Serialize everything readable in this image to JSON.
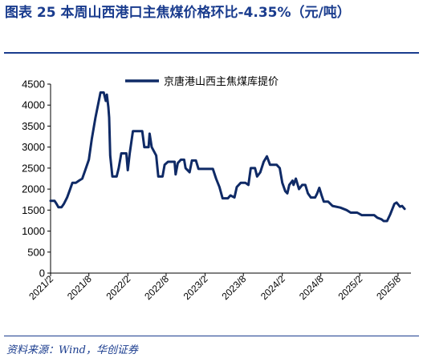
{
  "header": {
    "title": "图表 25  本周山西港口主焦煤价格环比-4.35%（元/吨）"
  },
  "footer": {
    "source": "资料来源：Wind，华创证券"
  },
  "colors": {
    "accent": "#1a3c8e",
    "series": "#0f2a66"
  },
  "chart_data": {
    "type": "line",
    "title": "",
    "xlabel": "",
    "ylabel": "",
    "ylim": [
      0,
      4500
    ],
    "yticks": [
      0,
      500,
      1000,
      1500,
      2000,
      2500,
      3000,
      3500,
      4000,
      4500
    ],
    "xlim": [
      "2021-02",
      "2025-10"
    ],
    "xticks": [
      "2021/2",
      "2021/8",
      "2022/2",
      "2022/8",
      "2023/2",
      "2023/8",
      "2024/2",
      "2024/8",
      "2025/2",
      "2025/8"
    ],
    "legend": "top-center",
    "grid": false,
    "series": [
      {
        "name": "京唐港山西主焦煤库提价",
        "points": [
          [
            "2021-02-01",
            1720
          ],
          [
            "2021-02-20",
            1720
          ],
          [
            "2021-03-01",
            1650
          ],
          [
            "2021-03-10",
            1570
          ],
          [
            "2021-03-25",
            1570
          ],
          [
            "2021-04-05",
            1650
          ],
          [
            "2021-04-20",
            1800
          ],
          [
            "2021-05-01",
            1950
          ],
          [
            "2021-05-15",
            2150
          ],
          [
            "2021-06-01",
            2150
          ],
          [
            "2021-06-15",
            2200
          ],
          [
            "2021-07-01",
            2250
          ],
          [
            "2021-07-15",
            2450
          ],
          [
            "2021-08-01",
            2700
          ],
          [
            "2021-08-15",
            3200
          ],
          [
            "2021-09-01",
            3700
          ],
          [
            "2021-09-15",
            4050
          ],
          [
            "2021-09-25",
            4300
          ],
          [
            "2021-10-10",
            4300
          ],
          [
            "2021-10-20",
            4100
          ],
          [
            "2021-10-25",
            4250
          ],
          [
            "2021-11-01",
            3950
          ],
          [
            "2021-11-05",
            3700
          ],
          [
            "2021-11-10",
            2800
          ],
          [
            "2021-11-20",
            2300
          ],
          [
            "2021-12-10",
            2300
          ],
          [
            "2021-12-20",
            2500
          ],
          [
            "2022-01-01",
            2850
          ],
          [
            "2022-01-25",
            2850
          ],
          [
            "2022-02-01",
            2450
          ],
          [
            "2022-02-10",
            2850
          ],
          [
            "2022-02-25",
            3380
          ],
          [
            "2022-04-10",
            3380
          ],
          [
            "2022-04-20",
            3000
          ],
          [
            "2022-05-10",
            3000
          ],
          [
            "2022-05-15",
            3320
          ],
          [
            "2022-05-25",
            3000
          ],
          [
            "2022-06-15",
            2800
          ],
          [
            "2022-06-25",
            2300
          ],
          [
            "2022-07-15",
            2300
          ],
          [
            "2022-07-25",
            2580
          ],
          [
            "2022-08-10",
            2650
          ],
          [
            "2022-09-10",
            2650
          ],
          [
            "2022-09-15",
            2350
          ],
          [
            "2022-09-25",
            2620
          ],
          [
            "2022-10-10",
            2700
          ],
          [
            "2022-10-25",
            2700
          ],
          [
            "2022-11-01",
            2500
          ],
          [
            "2022-11-20",
            2400
          ],
          [
            "2022-12-01",
            2680
          ],
          [
            "2022-12-20",
            2680
          ],
          [
            "2023-01-01",
            2480
          ],
          [
            "2023-03-10",
            2480
          ],
          [
            "2023-03-25",
            2250
          ],
          [
            "2023-04-10",
            2050
          ],
          [
            "2023-04-25",
            1780
          ],
          [
            "2023-05-20",
            1780
          ],
          [
            "2023-06-01",
            1850
          ],
          [
            "2023-06-20",
            1800
          ],
          [
            "2023-07-01",
            2050
          ],
          [
            "2023-07-20",
            2150
          ],
          [
            "2023-08-10",
            2150
          ],
          [
            "2023-08-25",
            2100
          ],
          [
            "2023-09-05",
            2500
          ],
          [
            "2023-09-25",
            2500
          ],
          [
            "2023-10-05",
            2300
          ],
          [
            "2023-10-20",
            2400
          ],
          [
            "2023-11-05",
            2650
          ],
          [
            "2023-11-20",
            2780
          ],
          [
            "2023-12-05",
            2580
          ],
          [
            "2024-01-05",
            2580
          ],
          [
            "2024-01-20",
            2500
          ],
          [
            "2024-02-01",
            2150
          ],
          [
            "2024-02-15",
            1950
          ],
          [
            "2024-02-25",
            1900
          ],
          [
            "2024-03-05",
            2100
          ],
          [
            "2024-03-20",
            2200
          ],
          [
            "2024-03-25",
            2100
          ],
          [
            "2024-04-05",
            2250
          ],
          [
            "2024-04-20",
            2000
          ],
          [
            "2024-05-05",
            2100
          ],
          [
            "2024-05-20",
            2100
          ],
          [
            "2024-06-01",
            1900
          ],
          [
            "2024-06-15",
            1800
          ],
          [
            "2024-07-05",
            1800
          ],
          [
            "2024-07-15",
            1900
          ],
          [
            "2024-07-25",
            2030
          ],
          [
            "2024-08-05",
            1850
          ],
          [
            "2024-08-15",
            1700
          ],
          [
            "2024-09-05",
            1700
          ],
          [
            "2024-09-25",
            1600
          ],
          [
            "2024-11-01",
            1560
          ],
          [
            "2024-12-01",
            1500
          ],
          [
            "2024-12-20",
            1440
          ],
          [
            "2025-01-20",
            1440
          ],
          [
            "2025-02-10",
            1380
          ],
          [
            "2025-04-10",
            1380
          ],
          [
            "2025-04-25",
            1320
          ],
          [
            "2025-05-15",
            1280
          ],
          [
            "2025-05-25",
            1240
          ],
          [
            "2025-06-10",
            1240
          ],
          [
            "2025-06-25",
            1400
          ],
          [
            "2025-07-15",
            1650
          ],
          [
            "2025-07-25",
            1680
          ],
          [
            "2025-08-10",
            1580
          ],
          [
            "2025-08-20",
            1600
          ],
          [
            "2025-09-01",
            1530
          ]
        ]
      }
    ]
  }
}
